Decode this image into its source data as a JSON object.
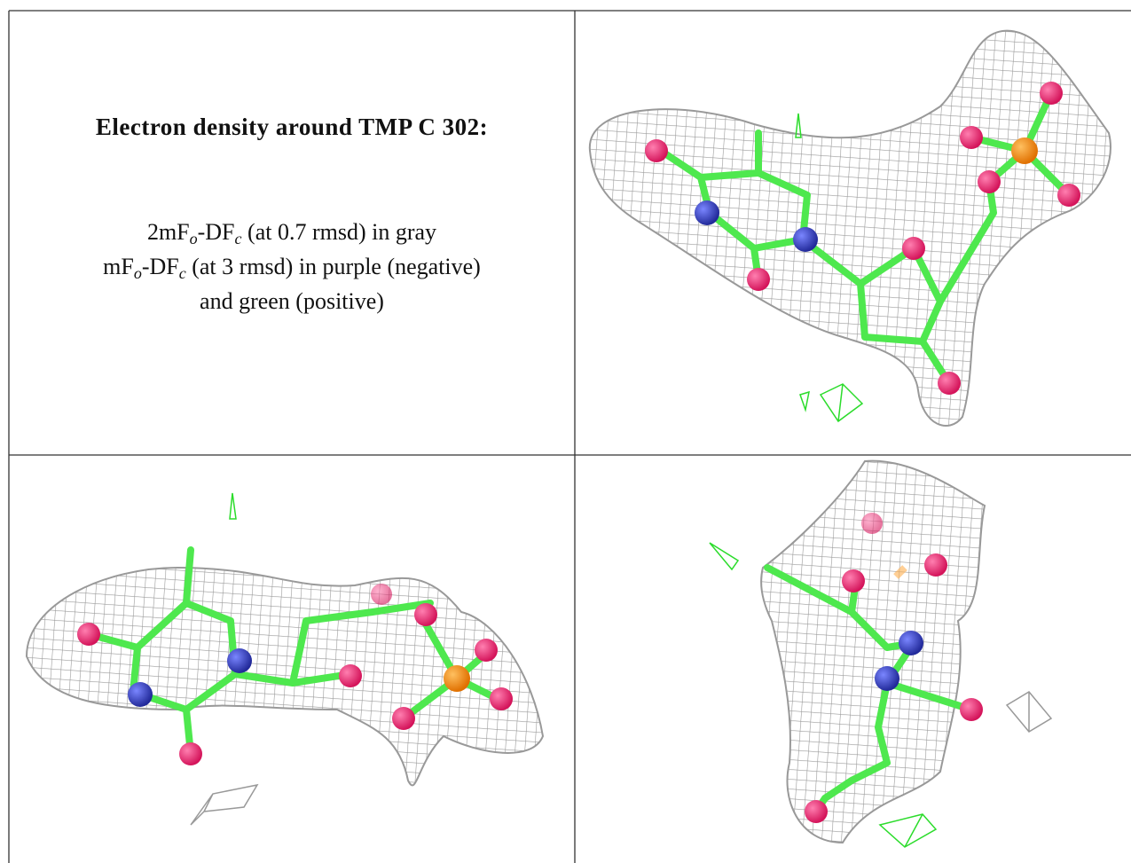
{
  "caption": {
    "title": "Electron density around TMP C 302:",
    "lines": [
      [
        "2mF",
        "o",
        "-DF",
        "c",
        " (at 0.7 rmsd) in gray"
      ],
      [
        "mF",
        "o",
        "-DF",
        "c",
        " (at 3 rmsd) in purple (negative)"
      ],
      [
        "and green (positive)"
      ]
    ]
  }
}
